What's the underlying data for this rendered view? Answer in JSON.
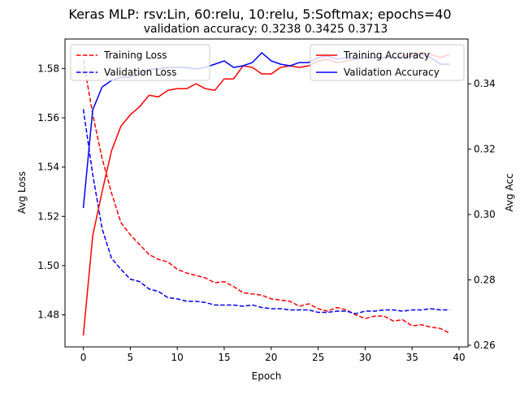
{
  "chart_data": {
    "type": "line",
    "title": "Keras MLP: rsv:Lin, 60:relu, 10:relu, 5:Softmax; epochs=40",
    "subtitle": "validation accuracy:  0.3238  0.3425  0.3713",
    "xlabel": "Epoch",
    "ylabel_left": "Avg Loss",
    "ylabel_right": "Avg Acc",
    "xlim": [
      -1.95,
      40.95
    ],
    "ylim_left": [
      1.467,
      1.592
    ],
    "ylim_right": [
      0.2595,
      0.3537
    ],
    "xticks": [
      0,
      5,
      10,
      15,
      20,
      25,
      30,
      35,
      40
    ],
    "yticks_left": [
      1.48,
      1.5,
      1.52,
      1.54,
      1.56,
      1.58
    ],
    "yticks_left_labels": [
      "1.48",
      "1.50",
      "1.52",
      "1.54",
      "1.56",
      "1.58"
    ],
    "yticks_right": [
      0.26,
      0.28,
      0.3,
      0.32,
      0.34
    ],
    "yticks_right_labels": [
      "0.26",
      "0.28",
      "0.30",
      "0.32",
      "0.34"
    ],
    "grid": false,
    "legend_left": {
      "placement": "top-left",
      "series": [
        "Training Loss",
        "Validation Loss"
      ]
    },
    "legend_right": {
      "placement": "top-right",
      "series": [
        "Training Accuracy",
        "Validation Accuracy"
      ]
    },
    "series": [
      {
        "name": "Training Loss",
        "axis": "left",
        "color": "#ff0000",
        "dash": true,
        "x": [
          0,
          1,
          2,
          3,
          4,
          5,
          6,
          7,
          8,
          9,
          10,
          11,
          12,
          13,
          14,
          15,
          16,
          17,
          18,
          19,
          20,
          21,
          22,
          23,
          24,
          25,
          26,
          27,
          28,
          29,
          30,
          31,
          32,
          33,
          34,
          35,
          36,
          37,
          38,
          39
        ],
        "values": [
          1.5835,
          1.5615,
          1.5435,
          1.5295,
          1.5175,
          1.5125,
          1.5085,
          1.5045,
          1.5025,
          1.5015,
          1.4985,
          1.497,
          1.496,
          1.495,
          1.493,
          1.4935,
          1.4915,
          1.489,
          1.4885,
          1.488,
          1.4865,
          1.486,
          1.4855,
          1.4835,
          1.4845,
          1.4825,
          1.4815,
          1.483,
          1.482,
          1.48,
          1.4785,
          1.4795,
          1.4795,
          1.4775,
          1.478,
          1.4755,
          1.476,
          1.475,
          1.4745,
          1.4725
        ]
      },
      {
        "name": "Validation Loss",
        "axis": "left",
        "color": "#0000ff",
        "dash": true,
        "x": [
          0,
          1,
          2,
          3,
          4,
          5,
          6,
          7,
          8,
          9,
          10,
          11,
          12,
          13,
          14,
          15,
          16,
          17,
          18,
          19,
          20,
          21,
          22,
          23,
          24,
          25,
          26,
          27,
          28,
          29,
          30,
          31,
          32,
          33,
          34,
          35,
          36,
          37,
          38,
          39
        ],
        "values": [
          1.5635,
          1.537,
          1.515,
          1.503,
          1.4985,
          1.4945,
          1.4935,
          1.4905,
          1.4895,
          1.487,
          1.4865,
          1.4855,
          1.4855,
          1.485,
          1.484,
          1.484,
          1.484,
          1.4835,
          1.484,
          1.483,
          1.4825,
          1.4825,
          1.482,
          1.482,
          1.482,
          1.481,
          1.481,
          1.4815,
          1.4815,
          1.4805,
          1.4815,
          1.4815,
          1.482,
          1.482,
          1.4815,
          1.482,
          1.482,
          1.4825,
          1.482,
          1.482
        ]
      },
      {
        "name": "Training Accuracy",
        "axis": "right",
        "color": "#ff0000",
        "dash": false,
        "x": [
          0,
          1,
          2,
          3,
          4,
          5,
          6,
          7,
          8,
          9,
          10,
          11,
          12,
          13,
          14,
          15,
          16,
          17,
          18,
          19,
          20,
          21,
          22,
          23,
          24,
          25,
          26,
          27,
          28,
          29,
          30,
          31,
          32,
          33,
          34,
          35,
          36,
          37,
          38,
          39
        ],
        "values": [
          0.263,
          0.2935,
          0.307,
          0.3195,
          0.327,
          0.3305,
          0.333,
          0.3365,
          0.336,
          0.338,
          0.3385,
          0.3385,
          0.34,
          0.3385,
          0.338,
          0.3415,
          0.3415,
          0.3455,
          0.345,
          0.343,
          0.343,
          0.345,
          0.3455,
          0.345,
          0.3455,
          0.347,
          0.3475,
          0.3465,
          0.347,
          0.3475,
          0.348,
          0.348,
          0.348,
          0.348,
          0.3485,
          0.349,
          0.3495,
          0.349,
          0.348,
          0.349
        ]
      },
      {
        "name": "Validation Accuracy",
        "axis": "right",
        "color": "#0000ff",
        "dash": false,
        "x": [
          0,
          1,
          2,
          3,
          4,
          5,
          6,
          7,
          8,
          9,
          10,
          11,
          12,
          13,
          14,
          15,
          16,
          17,
          18,
          19,
          20,
          21,
          22,
          23,
          24,
          25,
          26,
          27,
          28,
          29,
          30,
          31,
          32,
          33,
          34,
          35,
          36,
          37,
          38,
          39
        ],
        "values": [
          0.302,
          0.332,
          0.339,
          0.341,
          0.342,
          0.342,
          0.343,
          0.3445,
          0.3445,
          0.345,
          0.345,
          0.345,
          0.3445,
          0.345,
          0.346,
          0.347,
          0.345,
          0.3455,
          0.3465,
          0.3495,
          0.347,
          0.346,
          0.3455,
          0.3465,
          0.3465,
          0.348,
          0.3485,
          0.3475,
          0.348,
          0.3475,
          0.348,
          0.348,
          0.348,
          0.348,
          0.348,
          0.3485,
          0.349,
          0.348,
          0.346,
          0.346
        ]
      }
    ]
  }
}
